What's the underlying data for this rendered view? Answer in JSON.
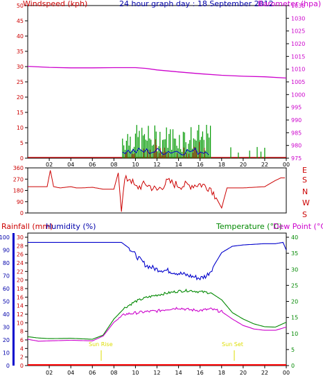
{
  "title": "24 hour graph day : 18 September 2012",
  "colors": {
    "wind": "#cc0000",
    "gust": "#009900",
    "windLine": "#0000cc",
    "pressure": "#cc00cc",
    "direction": "#cc0000",
    "rain": "#ff0000",
    "humidity": "#0000cc",
    "temperature": "#008800",
    "dewpoint": "#cc00cc",
    "axisBlue": "#0000aa",
    "axisRed": "#cc0000",
    "axisGreen": "#008800",
    "axisMagenta": "#cc00cc",
    "sun": "#dddd00"
  },
  "chart_data": [
    {
      "type": "line",
      "name": "wind-pressure",
      "ylabel_left": "Windspeed (kph)",
      "ylabel_right": "Barometer (hpa)",
      "ylim_left": [
        0,
        50
      ],
      "yticks_left": [
        "0",
        "5",
        "10",
        "15",
        "20",
        "25",
        "30",
        "35",
        "40",
        "45",
        "50"
      ],
      "ylim_right": [
        975,
        1035
      ],
      "yticks_right": [
        "975",
        "980",
        "985",
        "990",
        "995",
        "1000",
        "1005",
        "1010",
        "1015",
        "1020",
        "1025",
        "1030",
        "1035"
      ],
      "x_ticks": [
        "02",
        "04",
        "06",
        "08",
        "10",
        "12",
        "14",
        "16",
        "18",
        "20",
        "22",
        "00"
      ],
      "pressure": {
        "x": [
          0,
          2,
          4,
          6,
          8,
          10,
          11,
          12,
          14,
          16,
          18,
          20,
          22,
          24
        ],
        "y": [
          1011.1,
          1010.7,
          1010.5,
          1010.5,
          1010.6,
          1010.6,
          1010.3,
          1009.7,
          1008.9,
          1008.2,
          1007.6,
          1007.2,
          1007,
          1006.5
        ]
      },
      "wind_activity_hours": [
        8.8,
        17
      ],
      "wind_sparse_hours": [
        18.5,
        23.5
      ],
      "gust_max": 11
    },
    {
      "type": "line",
      "name": "wind-direction",
      "yticks": [
        "0",
        "90",
        "180",
        "270",
        "360"
      ],
      "ylim": [
        0,
        360
      ],
      "compass_labels": [
        "E",
        "S",
        "N",
        "W",
        "S"
      ],
      "direction": {
        "x": [
          0,
          1,
          1.8,
          2.1,
          2.4,
          3,
          4,
          4.5,
          5,
          6,
          7,
          8,
          8.4,
          8.7,
          9,
          9.5,
          10,
          11,
          12,
          13,
          14,
          15,
          16,
          17,
          18,
          18.5,
          19,
          20,
          21,
          22,
          23,
          23.5,
          24
        ],
        "y": [
          210,
          210,
          210,
          340,
          210,
          200,
          210,
          200,
          200,
          205,
          190,
          190,
          320,
          10,
          260,
          280,
          200,
          230,
          180,
          250,
          220,
          220,
          230,
          200,
          40,
          200,
          200,
          200,
          205,
          210,
          260,
          280,
          280
        ]
      }
    },
    {
      "type": "line",
      "name": "rain-humidity-temperature",
      "ylabel_rain": "Rainfall (mm)",
      "ylabel_humidity": "Humidity (%)",
      "ylabel_temp": "Temperature (°C)",
      "ylabel_dew": "Dew Point (°C)",
      "yticks_humidity": [
        "0",
        "10",
        "20",
        "30",
        "40",
        "50",
        "60",
        "70",
        "80",
        "90",
        "100"
      ],
      "yticks_rain": [
        "0",
        "2",
        "4",
        "6",
        "8",
        "10",
        "12",
        "14",
        "16",
        "18",
        "20",
        "22",
        "24",
        "26",
        "28",
        "30"
      ],
      "yticks_temp": [
        "0",
        "5",
        "10",
        "15",
        "20",
        "25",
        "30",
        "35",
        "40"
      ],
      "ylim_humidity": [
        0,
        100
      ],
      "ylim_rain": [
        0,
        30
      ],
      "ylim_temp": [
        0,
        40
      ],
      "x_ticks": [
        "02",
        "04",
        "06",
        "08",
        "10",
        "12",
        "14",
        "16",
        "18",
        "20",
        "22",
        "00"
      ],
      "sunrise_label": "Sun Rise",
      "sunset_label": "Sun Set",
      "sunrise_hour": 6.7,
      "sunset_hour": 19,
      "humidity": {
        "x": [
          0,
          1,
          2,
          4,
          6,
          8,
          8.7,
          9.5,
          10,
          11,
          12,
          13,
          14,
          15,
          16,
          16.6,
          17,
          17.5,
          18,
          19,
          20,
          22,
          23,
          23.7,
          24
        ],
        "y": [
          96,
          96,
          96,
          96,
          96,
          96,
          96,
          91,
          86,
          78,
          75,
          74,
          72,
          70,
          68,
          70,
          74,
          81,
          88,
          93,
          94,
          95,
          95,
          96,
          90
        ]
      },
      "temperature": {
        "x": [
          0,
          1,
          2,
          4,
          6,
          7,
          8,
          9,
          10,
          11,
          12,
          13,
          14,
          15,
          16,
          17,
          18,
          19,
          20,
          21,
          22,
          23,
          24
        ],
        "y": [
          9,
          8.6,
          8.4,
          8.5,
          8.2,
          9.5,
          14.5,
          18,
          20,
          21.2,
          22,
          22.6,
          23.2,
          23.4,
          23,
          22.7,
          20.5,
          16.5,
          14.5,
          13,
          12.1,
          12,
          13.5
        ]
      },
      "dewpoint": {
        "x": [
          0,
          1,
          2,
          4,
          6,
          7,
          8,
          9,
          10,
          11,
          12,
          13,
          14,
          15,
          16,
          17,
          18,
          19,
          20,
          21,
          22,
          23,
          24
        ],
        "y": [
          8.2,
          7.6,
          7.7,
          7.9,
          7.7,
          9.2,
          13.5,
          16,
          16.4,
          16.8,
          17,
          17.6,
          18,
          17.4,
          17.2,
          17.6,
          16.8,
          14.5,
          12.5,
          11.4,
          11,
          11,
          12
        ]
      },
      "rain": {
        "x": [
          0,
          24
        ],
        "y": [
          0,
          0
        ]
      }
    }
  ]
}
